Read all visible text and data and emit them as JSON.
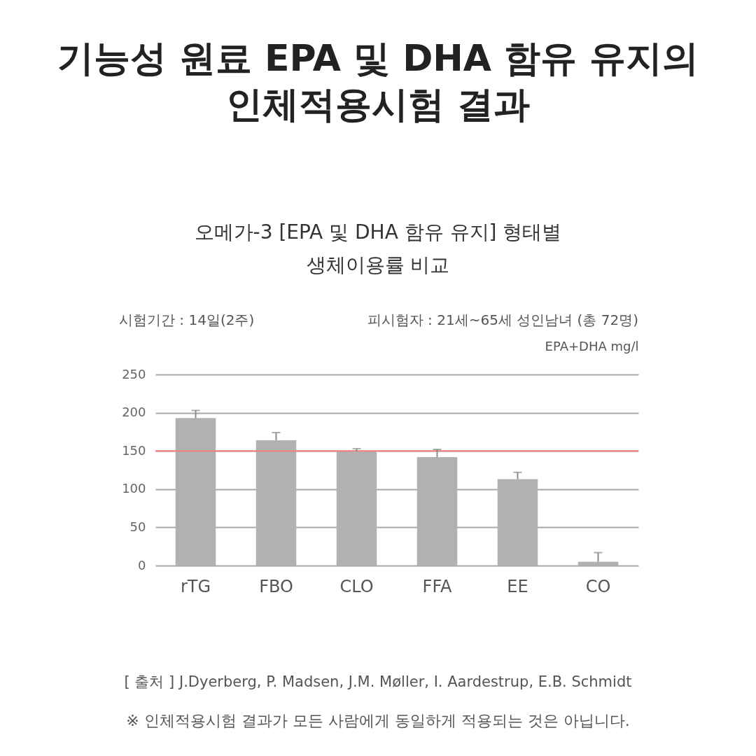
{
  "chart_data": {
    "type": "bar",
    "title": "기능성 원료 EPA 및 DHA 함유 유지의\n인체적용시험 결과",
    "subtitle": "오메가-3 [EPA 및 DHA 함유 유지] 형태별\n생체이용률 비교",
    "ylabel": "EPA+DHA mg/l",
    "categories": [
      "rTG",
      "FBO",
      "CLO",
      "FFA",
      "EE",
      "CO"
    ],
    "values": [
      193,
      164,
      149,
      142,
      113,
      5
    ],
    "errors": [
      [
        193,
        203
      ],
      [
        164,
        174
      ],
      [
        149,
        153
      ],
      [
        142,
        152
      ],
      [
        113,
        122
      ],
      [
        5,
        17
      ]
    ],
    "color": "#b0b1b0",
    "ylim": [
      0,
      250
    ],
    "yticks": [
      0,
      50,
      100,
      150,
      200,
      250
    ],
    "grid": "y",
    "ref_lines": [
      {
        "axis": "y",
        "value": 150,
        "color": "#f07f7f"
      }
    ],
    "annotations": [
      "시험기간 : 14일(2주)",
      "피시험자 : 21세~65세 성인남녀 (총 72명)",
      "[ 출처 ] J.Dyerberg, P. Madsen, J.M. Møller, I. Aardestrup, E.B.  Schmidt",
      "※ 인체적용시험 결과가 모든 사람에게 동일하게 적용되는 것은  아닙니다."
    ]
  }
}
